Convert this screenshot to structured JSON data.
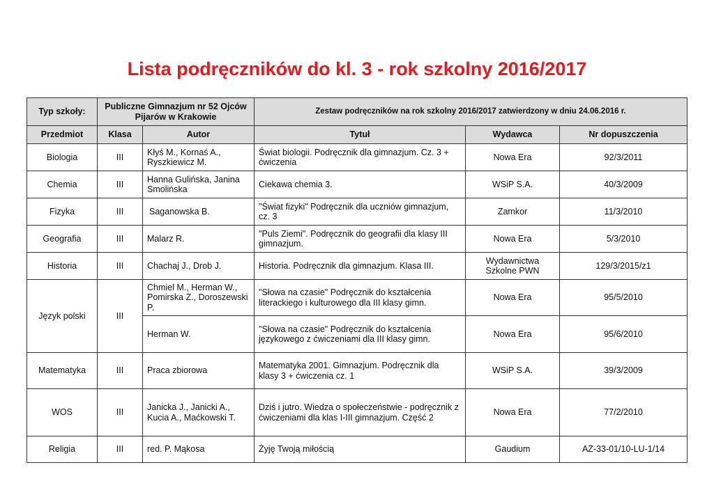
{
  "title": "Lista podręczników do kl. 3 - rok szkolny 2016/2017",
  "school": {
    "label": "Typ szkoły:",
    "name": "Publiczne Gimnazjum nr 52 Ojców Pijarów w Krakowie",
    "approval": "Zestaw podręczników na rok szkolny 2016/2017 zatwierdzony w dniu 24.06.2016 r."
  },
  "columns": [
    "Przedmiot",
    "Klasa",
    "Autor",
    "Tytuł",
    "Wydawca",
    "Nr dopuszczenia"
  ],
  "rows": [
    {
      "subject": "Biologia",
      "class": "III",
      "author": "Kłyś M., Kornaś A., Ryszkiewicz M.",
      "title": "Świat biologii. Podręcznik dla gimnazjum. Cz. 3 + ćwiczenia",
      "publisher": "Nowa Era",
      "number": "92/3/2011"
    },
    {
      "subject": "Chemia",
      "class": "III",
      "author": "Hanna Gulińska, Janina Smolińska",
      "title": "Ciekawa chemia 3.",
      "publisher": "WSiP S.A.",
      "number": "40/3/2009"
    },
    {
      "subject": "Fizyka",
      "class": "III",
      "author": "Saganowska B.",
      "title": "\"Świat fizyki\" Podręcznik dla uczniów gimnazjum, cz. 3",
      "publisher": "Zamkor",
      "number": "11/3/2010"
    },
    {
      "subject": "Geografia",
      "class": "III",
      "author": "Malarz R.",
      "title": "\"Puls Ziemi\". Podręcznik do geografii dla klasy III gimnazjum.",
      "publisher": "Nowa Era",
      "number": "5/3/2010"
    },
    {
      "subject": "Historia",
      "class": "III",
      "author": "Chachaj J., Drob J.",
      "title": "Historia. Podręcznik dla gimnazjum. Klasa III.",
      "publisher": "Wydawnictwa Szkolne PWN",
      "number": "129/3/2015/z1"
    },
    {
      "subject": "Język polski",
      "class": "III",
      "author": "Chmiel M., Herman W., Pomirska Z., Doroszewski P.",
      "title": "\"Słowa na czasie\" Podręcznik do kształcenia literackiego i kulturowego dla III klasy gimn.",
      "publisher": "Nowa Era",
      "number": "95/5/2010"
    },
    {
      "author": "Herman W.",
      "title": "\"Słowa na czasie\" Podręcznik do kształcenia językowego z ćwiczeniami dla III klasy gimn.",
      "publisher": "Nowa Era",
      "number": "95/6/2010"
    },
    {
      "subject": "Matematyka",
      "class": "III",
      "author": "Praca zbiorowa",
      "title": "Matematyka 2001. Gimnazjum. Podręcznik dla klasy 3 + ćwiczenia cz. 1",
      "publisher": "WSiP S.A.",
      "number": "39/3/2009"
    },
    {
      "subject": "WOS",
      "class": "III",
      "author": "Janicka J., Janicki A., Kucia A., Maćkowski T.",
      "title": "Dziś i jutro. Wiedza o społeczeństwie - podręcznik z ćwiczeniami dla klas I-III gimnazjum. Część 2",
      "publisher": "Nowa Era",
      "number": "77/2/2010"
    },
    {
      "subject": "Religia",
      "class": "III",
      "author": "red. P. Mąkosa",
      "title": "Żyję Twoją miłością",
      "publisher": "Gaudium",
      "number": "AZ-33-01/10-LU-1/14"
    }
  ]
}
